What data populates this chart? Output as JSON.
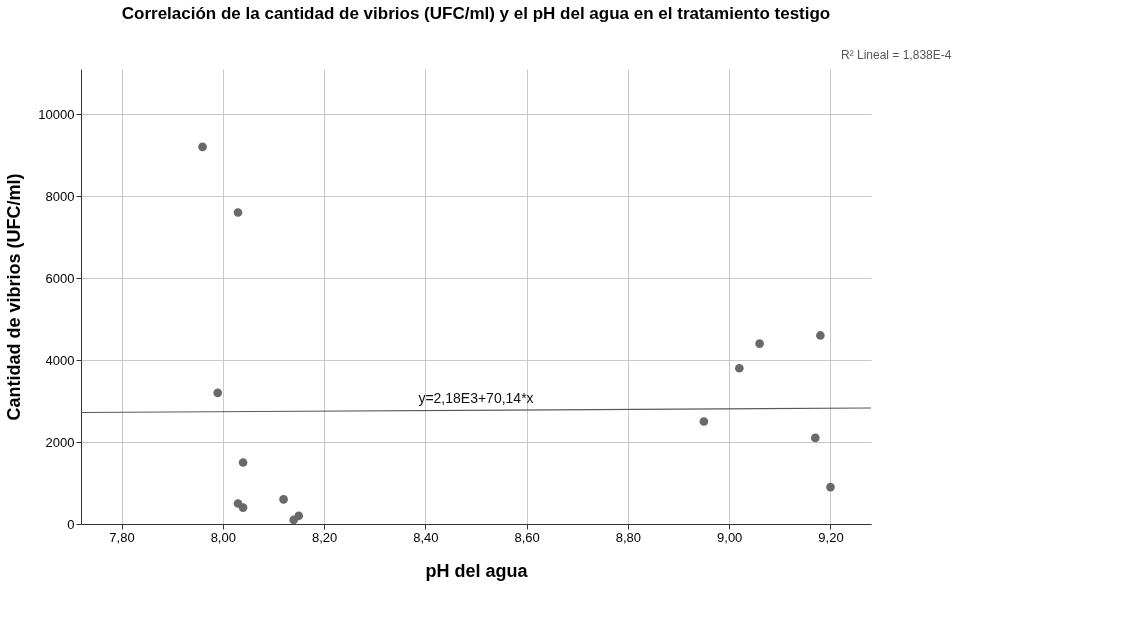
{
  "chart_data": {
    "type": "scatter",
    "title": "Correlación de la cantidad de vibrios (UFC/ml) y el pH del agua en el tratamiento testigo",
    "xlabel": "pH del agua",
    "ylabel": "Cantidad de vibrios (UFC/ml)",
    "x": [
      7.96,
      8.03,
      7.99,
      8.04,
      8.03,
      8.04,
      8.12,
      8.14,
      8.15,
      8.95,
      9.02,
      9.06,
      9.18,
      9.17,
      9.2
    ],
    "series": [
      {
        "color": "#696969",
        "marker": "circle",
        "values": [
          9200,
          7600,
          3200,
          1500,
          500,
          400,
          600,
          100,
          200,
          2500,
          3800,
          4400,
          4600,
          2100,
          900
        ]
      },
      {
        "type": "line",
        "color": "#5a5a5a",
        "marker": "none",
        "x": [
          7.72,
          9.28
        ],
        "values": [
          2720,
          2830
        ]
      }
    ],
    "xlim": [
      7.72,
      9.28
    ],
    "ylim": [
      0,
      11100
    ],
    "xticks": [
      {
        "value": 7.8,
        "label": "7,80"
      },
      {
        "value": 8.0,
        "label": "8,00"
      },
      {
        "value": 8.2,
        "label": "8,20"
      },
      {
        "value": 8.4,
        "label": "8,40"
      },
      {
        "value": 8.6,
        "label": "8,60"
      },
      {
        "value": 8.8,
        "label": "8,80"
      },
      {
        "value": 9.0,
        "label": "9,00"
      },
      {
        "value": 9.2,
        "label": "9,20"
      }
    ],
    "yticks": [
      0,
      2000,
      4000,
      6000,
      8000,
      10000
    ],
    "annotations": [
      {
        "text": "y=2,18E3+70,14*x",
        "x": 8.5,
        "y": 2780
      },
      "R² Lineal = 1,838E-4"
    ],
    "grid": true
  }
}
